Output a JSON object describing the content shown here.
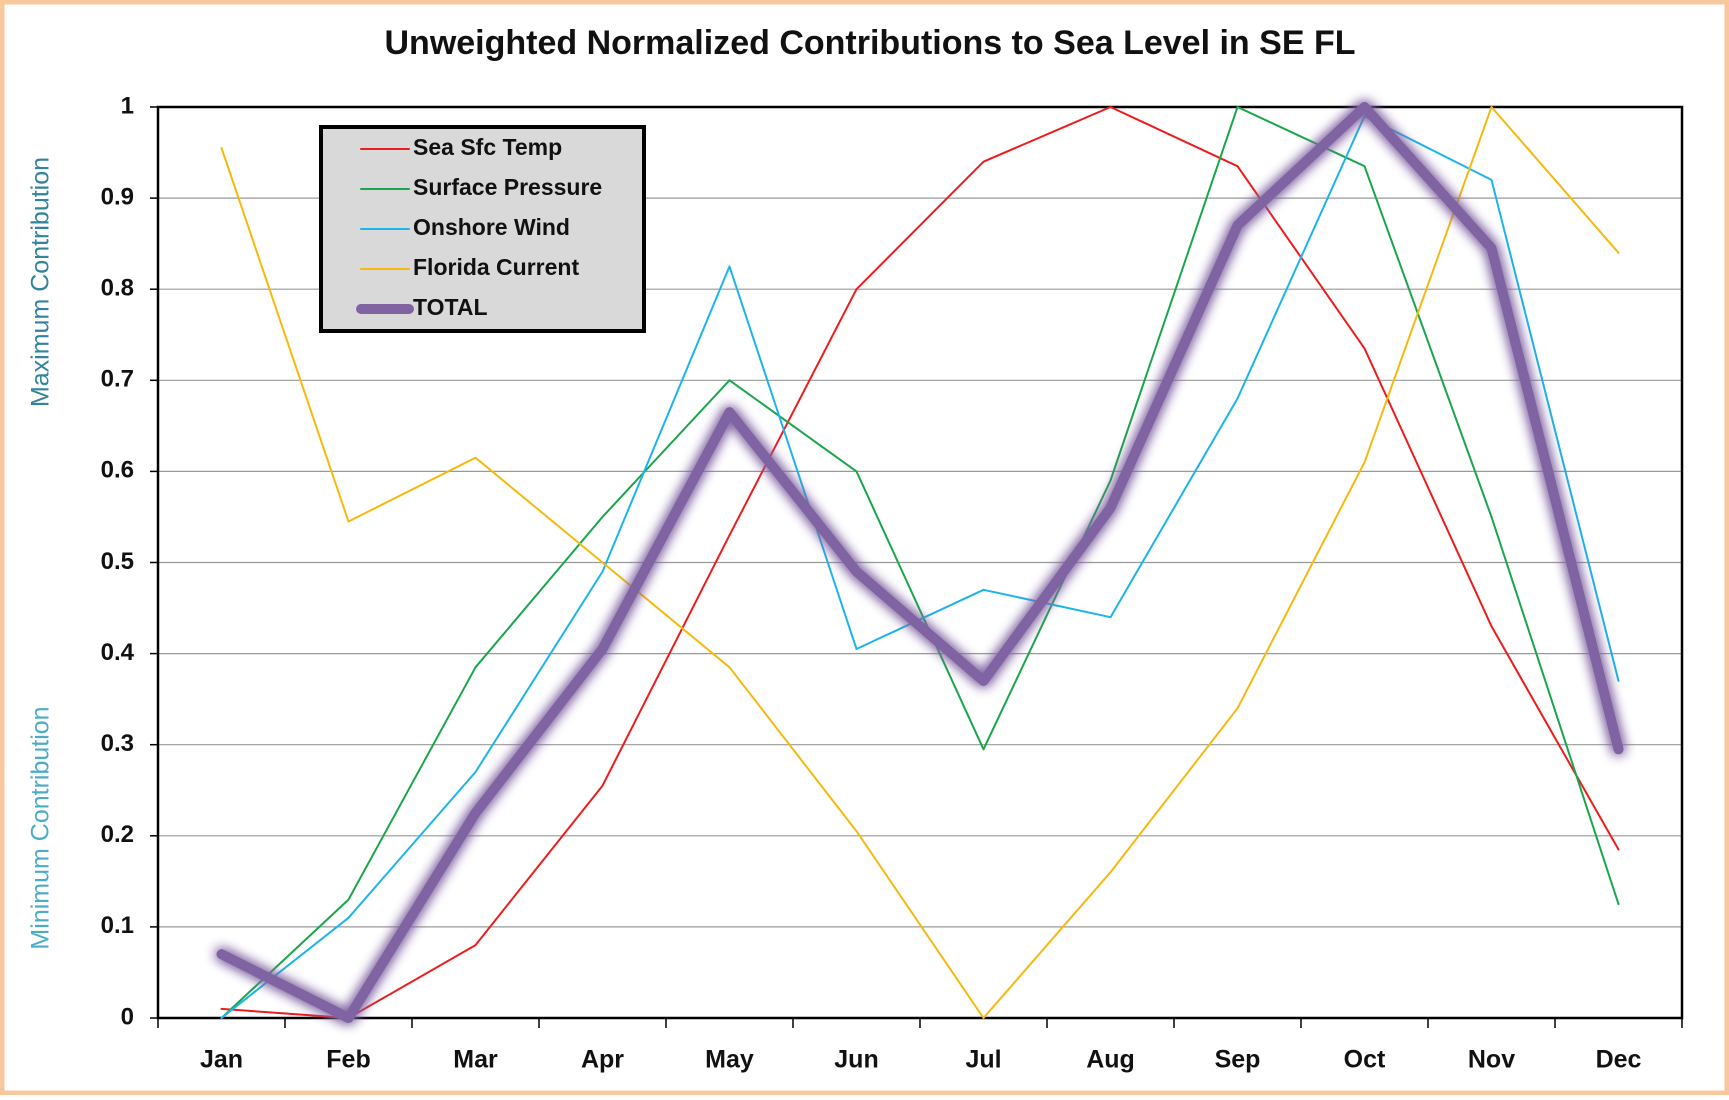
{
  "chart_data": {
    "type": "line",
    "title": "Unweighted Normalized Contributions to Sea Level in SE FL",
    "y_axis_labels": [
      "Maximum Contribution",
      "Minimum Contribution"
    ],
    "categories": [
      "Jan",
      "Feb",
      "Mar",
      "Apr",
      "May",
      "Jun",
      "Jul",
      "Aug",
      "Sep",
      "Oct",
      "Nov",
      "Dec"
    ],
    "series": [
      {
        "name": "Sea Sfc Temp",
        "color": "#ee1c1c",
        "width": 2,
        "values": [
          0.01,
          0,
          0.08,
          0.255,
          0.53,
          0.8,
          0.94,
          1.0,
          0.935,
          0.735,
          0.43,
          0.185
        ]
      },
      {
        "name": "Surface Pressure",
        "color": "#1aa64a",
        "width": 2,
        "values": [
          0,
          0.13,
          0.385,
          0.55,
          0.7,
          0.6,
          0.295,
          0.59,
          1.0,
          0.935,
          0.55,
          0.125
        ]
      },
      {
        "name": "Onshore Wind",
        "color": "#1cb4ea",
        "width": 2,
        "values": [
          0,
          0.11,
          0.27,
          0.49,
          0.825,
          0.405,
          0.47,
          0.44,
          0.68,
          0.99,
          0.92,
          0.37
        ]
      },
      {
        "name": "Florida Current",
        "color": "#f7b90f",
        "width": 2,
        "values": [
          0.955,
          0.545,
          0.615,
          0.5,
          0.385,
          0.205,
          0,
          0.16,
          0.34,
          0.61,
          1.0,
          0.84
        ]
      },
      {
        "name": "TOTAL",
        "color": "#8064a2",
        "width": 10,
        "values": [
          0.07,
          0,
          0.225,
          0.405,
          0.665,
          0.49,
          0.37,
          0.56,
          0.87,
          1.0,
          0.845,
          0.295
        ]
      }
    ],
    "ylim": [
      0,
      1
    ],
    "yticks": [
      0,
      0.1,
      0.2,
      0.3,
      0.4,
      0.5,
      0.6,
      0.7,
      0.8,
      0.9,
      1
    ],
    "grid": true,
    "legend": "upper left"
  }
}
